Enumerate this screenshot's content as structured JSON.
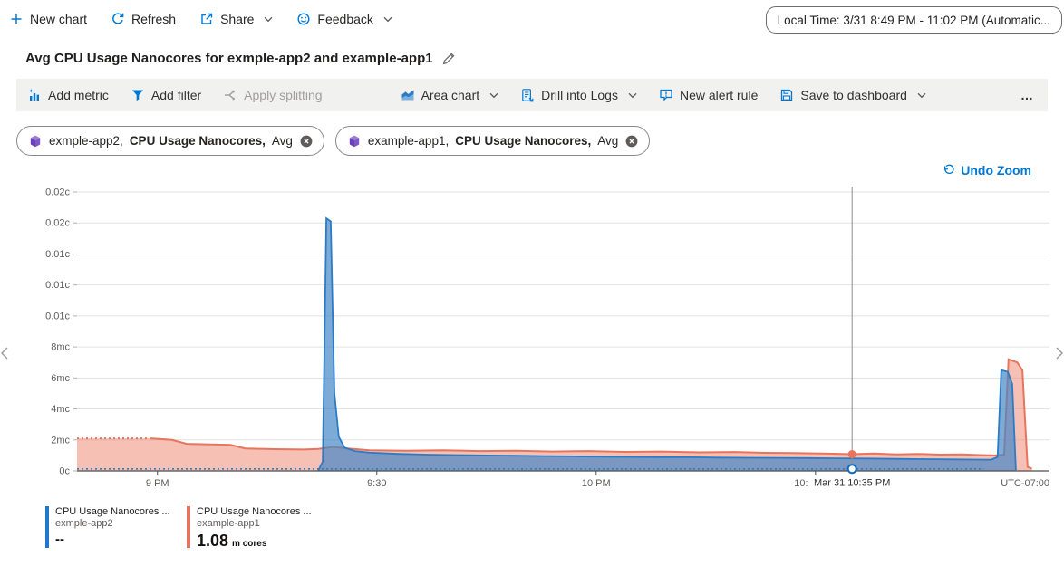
{
  "toolbar": {
    "new_chart": "New chart",
    "refresh": "Refresh",
    "share": "Share",
    "feedback": "Feedback",
    "time_range": "Local Time: 3/31 8:49 PM - 11:02 PM (Automatic..."
  },
  "page": {
    "title": "Avg CPU Usage Nanocores for exmple-app2 and example-app1"
  },
  "command_bar": {
    "add_metric": "Add metric",
    "add_filter": "Add filter",
    "apply_splitting": "Apply splitting",
    "chart_type": "Area chart",
    "drill_into_logs": "Drill into Logs",
    "new_alert_rule": "New alert rule",
    "save_to_dashboard": "Save to dashboard",
    "more": "…"
  },
  "pills": [
    {
      "scope": "exmple-app2,",
      "metric": "CPU Usage Nanocores,",
      "aggregation": "Avg"
    },
    {
      "scope": "example-app1,",
      "metric": "CPU Usage Nanocores,",
      "aggregation": "Avg"
    }
  ],
  "undo_zoom": "Undo Zoom",
  "legend": [
    {
      "metric": "CPU Usage Nanocores ...",
      "resource": "exmple-app2",
      "value": "--",
      "unit": "",
      "color": "#1f78c8"
    },
    {
      "metric": "CPU Usage Nanocores ...",
      "resource": "example-app1",
      "value": "1.08",
      "unit": "m cores",
      "color": "#e8745e"
    }
  ],
  "chart_data": {
    "type": "area",
    "title": "Avg CPU Usage Nanocores for exmple-app2 and example-app1",
    "x_unit": "minutes since 8:49 PM Mar 31 (zoomed range 8:49 PM - 11:02 PM)",
    "x_range": [
      0,
      133
    ],
    "y_unit": "cores (mc = millicores)",
    "y_max": 18,
    "y_tick_step": 2,
    "y_tick_labels": [
      "0c",
      "2mc",
      "4mc",
      "6mc",
      "8mc",
      "0.01c",
      "0.01c",
      "0.01c",
      "0.02c",
      "0.02c"
    ],
    "x_ticks": [
      {
        "label": "9 PM",
        "t": 11
      },
      {
        "label": "9:30",
        "t": 41
      },
      {
        "label": "10 PM",
        "t": 71
      },
      {
        "label": "10:30 PM",
        "t": 101
      }
    ],
    "timezone_label": "UTC-07:00",
    "crosshair": {
      "t": 106,
      "label": "Mar 31 10:35 PM",
      "markers": [
        {
          "series": "example-app1",
          "v": 1.08,
          "style": "filled",
          "color": "#e8745e"
        },
        {
          "series": "exmple-app2",
          "v": 0.13,
          "style": "open",
          "color": "#0f6cbd"
        }
      ]
    },
    "series": [
      {
        "id": "example-app1",
        "color": "#e8745e",
        "fill": "rgba(238,140,120,0.55)",
        "area": true,
        "width": 2,
        "lead_dotted": [
          [
            0,
            2.1
          ],
          [
            10,
            2.1
          ]
        ],
        "points": [
          [
            10,
            2.1
          ],
          [
            13,
            2.0
          ],
          [
            15,
            1.75
          ],
          [
            19,
            1.7
          ],
          [
            21,
            1.68
          ],
          [
            23,
            1.45
          ],
          [
            27,
            1.4
          ],
          [
            31,
            1.38
          ],
          [
            33,
            1.42
          ],
          [
            35,
            1.55
          ],
          [
            37,
            1.45
          ],
          [
            40,
            1.33
          ],
          [
            45,
            1.3
          ],
          [
            50,
            1.33
          ],
          [
            55,
            1.28
          ],
          [
            60,
            1.3
          ],
          [
            65,
            1.25
          ],
          [
            70,
            1.28
          ],
          [
            75,
            1.23
          ],
          [
            80,
            1.25
          ],
          [
            85,
            1.2
          ],
          [
            90,
            1.22
          ],
          [
            94,
            1.17
          ],
          [
            98,
            1.15
          ],
          [
            102,
            1.12
          ],
          [
            106,
            1.08
          ],
          [
            109,
            1.12
          ],
          [
            112,
            1.07
          ],
          [
            115,
            1.1
          ],
          [
            118,
            1.05
          ],
          [
            121,
            1.07
          ],
          [
            123.5,
            1.02
          ],
          [
            125.5,
            1.0
          ],
          [
            126.8,
            1.05
          ],
          [
            127.4,
            7.2
          ],
          [
            128.6,
            7.0
          ],
          [
            129.3,
            6.5
          ],
          [
            130,
            0.25
          ],
          [
            130.6,
            0.15
          ]
        ]
      },
      {
        "id": "exmple-app2",
        "color": "#2a7cc7",
        "fill": "rgba(70,135,198,0.7)",
        "area": true,
        "width": 1.8,
        "points": [
          [
            33,
            0.02
          ],
          [
            33.6,
            0.6
          ],
          [
            34.1,
            16.3
          ],
          [
            34.7,
            16.1
          ],
          [
            35.2,
            5.0
          ],
          [
            35.8,
            2.2
          ],
          [
            36.6,
            1.5
          ],
          [
            38,
            1.28
          ],
          [
            40,
            1.18
          ],
          [
            44,
            1.1
          ],
          [
            48,
            1.05
          ],
          [
            52,
            1.02
          ],
          [
            56,
            1.0
          ],
          [
            60,
            0.98
          ],
          [
            64,
            0.96
          ],
          [
            68,
            0.94
          ],
          [
            72,
            0.92
          ],
          [
            76,
            0.9
          ],
          [
            80,
            0.89
          ],
          [
            84,
            0.88
          ],
          [
            88,
            0.86
          ],
          [
            92,
            0.85
          ],
          [
            96,
            0.84
          ],
          [
            100,
            0.83
          ],
          [
            104,
            0.81
          ],
          [
            108,
            0.8
          ],
          [
            112,
            0.78
          ],
          [
            116,
            0.76
          ],
          [
            120,
            0.74
          ],
          [
            123,
            0.73
          ],
          [
            125,
            0.72
          ],
          [
            125.9,
            0.9
          ],
          [
            126.4,
            6.5
          ],
          [
            127.3,
            6.4
          ],
          [
            127.9,
            5.6
          ],
          [
            128.4,
            0.05
          ]
        ]
      },
      {
        "id": "exmple-app2-dotted-floor",
        "color": "#2a7cc7",
        "area": false,
        "dotted": true,
        "width": 1.6,
        "points": [
          [
            0,
            0.13
          ],
          [
            124,
            0.13
          ]
        ]
      }
    ]
  }
}
